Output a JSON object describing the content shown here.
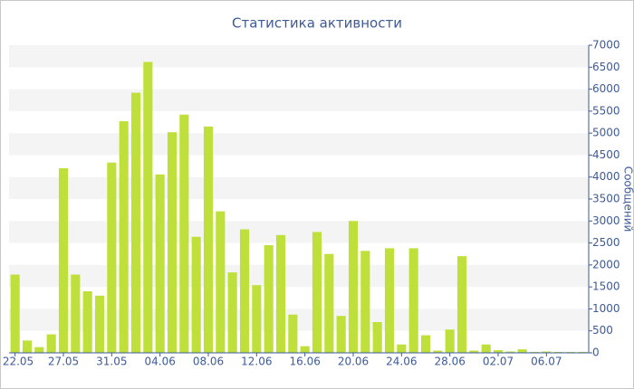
{
  "chart_data": {
    "type": "bar",
    "title": "Статистика активности",
    "y_axis_label": "Сообщений",
    "categories": [
      "22.05",
      null,
      null,
      null,
      "27.05",
      null,
      null,
      null,
      "31.05",
      null,
      null,
      null,
      "04.06",
      null,
      null,
      null,
      "08.06",
      null,
      null,
      null,
      "12.06",
      null,
      null,
      null,
      "16.06",
      null,
      null,
      null,
      "20.06",
      null,
      null,
      null,
      "24.06",
      null,
      null,
      null,
      "28.06",
      null,
      null,
      null,
      "02.07",
      null,
      null,
      null,
      "06.07",
      null,
      null,
      null
    ],
    "values": [
      1780,
      280,
      130,
      420,
      4200,
      1780,
      1400,
      1300,
      4330,
      5270,
      5920,
      6620,
      4060,
      5020,
      5420,
      2640,
      5150,
      3220,
      1830,
      2810,
      1540,
      2450,
      2680,
      870,
      150,
      2750,
      2250,
      840,
      3000,
      2320,
      700,
      2380,
      190,
      2380,
      400,
      50,
      530,
      2200,
      50,
      190,
      60,
      30,
      80,
      20,
      30,
      20,
      20,
      20
    ],
    "color": "#bfe03a",
    "ylim": [
      0,
      7000
    ],
    "yticks": [
      0,
      500,
      1000,
      1500,
      2000,
      2500,
      3000,
      3500,
      4000,
      4500,
      5000,
      5500,
      6000,
      6500,
      7000
    ],
    "grid": true,
    "y_axis_side": "right"
  }
}
